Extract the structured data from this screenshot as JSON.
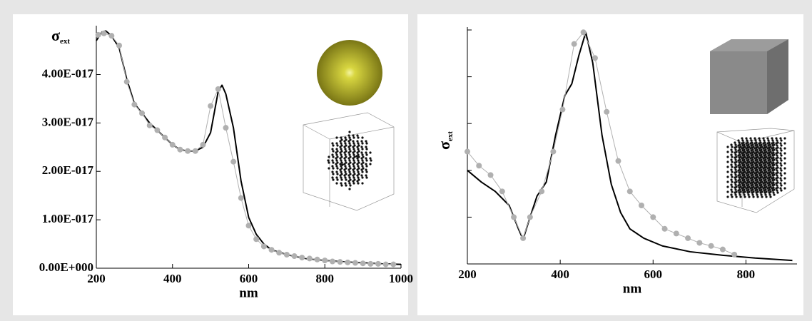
{
  "chart_data": [
    {
      "type": "line",
      "xlabel": "nm",
      "ylabel": "σ",
      "ylabel_sub": "ext",
      "xlim": [
        200,
        1000
      ],
      "xticks": [
        200,
        400,
        600,
        800,
        1000
      ],
      "ylim": [
        0,
        4.95e-17
      ],
      "yticks": [
        {
          "value": 0,
          "label": "0.00E+000"
        },
        {
          "value": 1e-17,
          "label": "1.00E-017"
        },
        {
          "value": 2e-17,
          "label": "2.00E-017"
        },
        {
          "value": 3e-17,
          "label": "3.00E-017"
        },
        {
          "value": 4e-17,
          "label": "4.00E-017"
        }
      ],
      "ytick_labels": true,
      "series": [
        {
          "color": "#000000",
          "marker": "none",
          "x": [
            200,
            215,
            225,
            240,
            260,
            280,
            300,
            320,
            340,
            360,
            380,
            400,
            420,
            440,
            460,
            480,
            500,
            520,
            530,
            540,
            560,
            580,
            600,
            620,
            640,
            660,
            700,
            750,
            800,
            850,
            900,
            950,
            1000
          ],
          "values": [
            4.7e-17,
            4.88e-17,
            4.9e-17,
            4.8e-17,
            4.55e-17,
            3.9e-17,
            3.4e-17,
            3.2e-17,
            3e-17,
            2.85e-17,
            2.7e-17,
            2.55e-17,
            2.45e-17,
            2.42e-17,
            2.42e-17,
            2.5e-17,
            2.8e-17,
            3.65e-17,
            3.78e-17,
            3.6e-17,
            2.9e-17,
            1.8e-17,
            1.05e-17,
            7e-18,
            5e-18,
            3.8e-18,
            2.8e-18,
            2e-18,
            1.6e-18,
            1.3e-18,
            1.1e-18,
            9e-19,
            8e-19
          ]
        },
        {
          "color": "#b0b0b0",
          "marker": "circle",
          "x": [
            205,
            220,
            240,
            260,
            280,
            300,
            320,
            340,
            360,
            380,
            400,
            420,
            440,
            460,
            480,
            500,
            520,
            540,
            560,
            580,
            600,
            620,
            640,
            660,
            680,
            700,
            720,
            740,
            760,
            780,
            800,
            820,
            840,
            860,
            880,
            900,
            920,
            940,
            960,
            980
          ],
          "values": [
            4.82e-17,
            4.85e-17,
            4.8e-17,
            4.6e-17,
            3.85e-17,
            3.38e-17,
            3.2e-17,
            2.95e-17,
            2.85e-17,
            2.7e-17,
            2.55e-17,
            2.45e-17,
            2.42e-17,
            2.42e-17,
            2.55e-17,
            3.35e-17,
            3.7e-17,
            2.9e-17,
            2.2e-17,
            1.45e-17,
            8.8e-18,
            6e-18,
            4.5e-18,
            3.8e-18,
            3.2e-18,
            2.8e-18,
            2.5e-18,
            2.2e-18,
            2e-18,
            1.8e-18,
            1.6e-18,
            1.4e-18,
            1.3e-18,
            1.2e-18,
            1.1e-18,
            1e-18,
            9e-19,
            9e-19,
            8e-19,
            8e-19
          ]
        }
      ]
    },
    {
      "type": "line",
      "xlabel": "nm",
      "ylabel": "σ",
      "ylabel_sub": "ext",
      "xlim": [
        200,
        910
      ],
      "xticks": [
        200,
        400,
        600,
        800
      ],
      "ylim": [
        0,
        1
      ],
      "yticks": [
        0.2,
        0.4,
        0.6,
        0.8,
        1
      ],
      "ytick_labels": false,
      "series": [
        {
          "color": "#000000",
          "marker": "none",
          "x": [
            200,
            230,
            260,
            290,
            310,
            320,
            335,
            350,
            370,
            390,
            410,
            425,
            440,
            455,
            470,
            490,
            510,
            530,
            550,
            580,
            620,
            680,
            750,
            820,
            900
          ],
          "values": [
            0.4,
            0.35,
            0.31,
            0.25,
            0.15,
            0.105,
            0.2,
            0.29,
            0.35,
            0.55,
            0.72,
            0.77,
            0.89,
            0.99,
            0.86,
            0.55,
            0.34,
            0.22,
            0.15,
            0.11,
            0.077,
            0.052,
            0.037,
            0.025,
            0.015
          ]
        },
        {
          "color": "#b0b0b0",
          "marker": "circle",
          "x": [
            200,
            225,
            250,
            275,
            300,
            320,
            335,
            360,
            385,
            405,
            430,
            450,
            475,
            500,
            525,
            550,
            575,
            600,
            625,
            650,
            675,
            700,
            725,
            750,
            775
          ],
          "values": [
            0.48,
            0.42,
            0.38,
            0.31,
            0.2,
            0.11,
            0.2,
            0.31,
            0.48,
            0.66,
            0.94,
            0.99,
            0.88,
            0.65,
            0.44,
            0.31,
            0.25,
            0.2,
            0.15,
            0.13,
            0.11,
            0.09,
            0.077,
            0.062,
            0.04
          ]
        }
      ]
    }
  ]
}
